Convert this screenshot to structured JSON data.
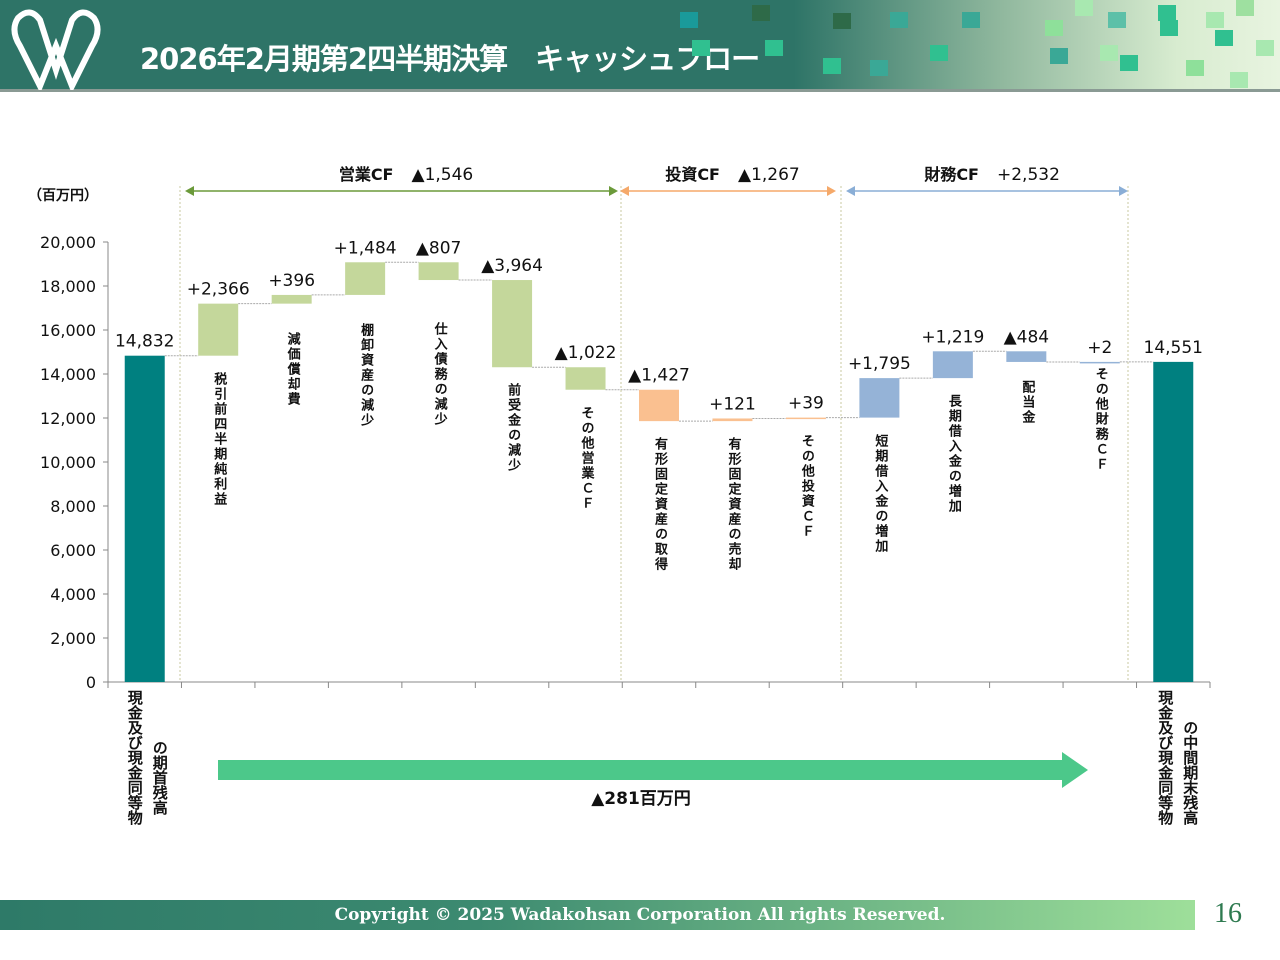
{
  "header": {
    "title": "2026年2月期第2四半期決算　キャッシュフロー",
    "logo_letter": "W"
  },
  "footer": {
    "copyright": "Copyright © 2025  Wadakohsan Corporation All rights Reserved.",
    "page_number": "16"
  },
  "colors": {
    "balance": "#008080",
    "operating": "#c4d79b",
    "investing": "#fac090",
    "financing": "#95b3d7",
    "arrow": "#4cc88a"
  },
  "chart_data": {
    "type": "waterfall",
    "unit_label": "（百万円）",
    "ylim": [
      0,
      20000
    ],
    "yticks": [
      "0",
      "2,000",
      "4,000",
      "6,000",
      "8,000",
      "10,000",
      "12,000",
      "14,000",
      "16,000",
      "18,000",
      "20,000"
    ],
    "ytick_values": [
      0,
      2000,
      4000,
      6000,
      8000,
      10000,
      12000,
      14000,
      16000,
      18000,
      20000
    ],
    "items": [
      {
        "label": "現金及び現金同等物|の期首残高",
        "type": "balance",
        "value": 14832,
        "data_label": "14,832"
      },
      {
        "label": "税引前四半期純利益",
        "type": "operating",
        "value": 2366,
        "data_label": "+2,366"
      },
      {
        "label": "減価償却費",
        "type": "operating",
        "value": 396,
        "data_label": "+396"
      },
      {
        "label": "棚卸資産の減少",
        "type": "operating",
        "value": 1484,
        "data_label": "+1,484"
      },
      {
        "label": "仕入債務の減少",
        "type": "operating",
        "value": -807,
        "data_label": "▲807"
      },
      {
        "label": "前受金の減少",
        "type": "operating",
        "value": -3964,
        "data_label": "▲3,964"
      },
      {
        "label": "その他営業ＣＦ",
        "type": "operating",
        "value": -1022,
        "data_label": "▲1,022"
      },
      {
        "label": "有形固定資産の取得",
        "type": "investing",
        "value": -1427,
        "data_label": "▲1,427"
      },
      {
        "label": "有形固定資産の売却",
        "type": "investing",
        "value": 121,
        "data_label": "+121"
      },
      {
        "label": "その他投資ＣＦ",
        "type": "investing",
        "value": 39,
        "data_label": "+39"
      },
      {
        "label": "短期借入金の増加",
        "type": "financing",
        "value": 1795,
        "data_label": "+1,795"
      },
      {
        "label": "長期借入金の増加",
        "type": "financing",
        "value": 1219,
        "data_label": "+1,219"
      },
      {
        "label": "配当金",
        "type": "financing",
        "value": -484,
        "data_label": "▲484"
      },
      {
        "label": "その他財務ＣＦ",
        "type": "financing",
        "value": 2,
        "data_label": "+2"
      },
      {
        "label": "現金及び現金同等物|の中間期末残高",
        "type": "balance",
        "value": 14551,
        "data_label": "14,551"
      }
    ],
    "sections": [
      {
        "name": "営業CF",
        "total": "▲1,546",
        "from": 1,
        "to": 6,
        "color": "#6b9a3a"
      },
      {
        "name": "投資CF",
        "total": "▲1,267",
        "from": 7,
        "to": 9,
        "color": "#f5a96a"
      },
      {
        "name": "財務CF",
        "total": "+2,532",
        "from": 10,
        "to": 13,
        "color": "#8aaed6"
      }
    ],
    "net_change_label": "▲281百万円"
  }
}
